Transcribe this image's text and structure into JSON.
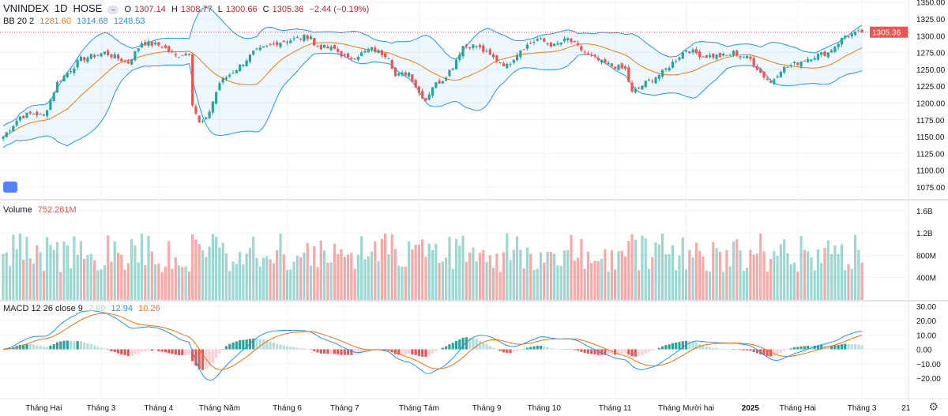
{
  "header": {
    "symbol": "VNINDEX",
    "interval": "1D",
    "exchange": "HOSE",
    "collapse_icon": "minus-icon",
    "open_label": "O",
    "open": "1307.14",
    "high_label": "H",
    "high": "1308.77",
    "low_label": "L",
    "low": "1300.66",
    "close_label": "C",
    "close": "1305.36",
    "change": "−2.44 (−0.19%)"
  },
  "bb": {
    "label": "BB 20 2",
    "basis": "1281.60",
    "upper": "1314.68",
    "lower": "1248.53"
  },
  "volume": {
    "label": "Volume",
    "value": "752.261M"
  },
  "macd": {
    "label": "MACD 12 26 close 9",
    "hist": "2.69",
    "macd": "12.94",
    "signal": "10.26"
  },
  "colors": {
    "up": "#26a69a",
    "down": "#ef5350",
    "bb_basis": "#f57c00",
    "bb_band": "#2196f3",
    "macd": "#2196f3",
    "signal": "#ff6d00"
  },
  "chart_data": {
    "type": "candlestick",
    "price_axis": {
      "ticks": [
        "1350.00",
        "1325.00",
        "1300.00",
        "1275.00",
        "1250.00",
        "1225.00",
        "1200.00",
        "1175.00",
        "1150.00",
        "1125.00",
        "1100.00",
        "1075.00"
      ],
      "last_price": "1305.36"
    },
    "volume_axis": {
      "ticks": [
        "1.6B",
        "1.2B",
        "800M",
        "400M"
      ]
    },
    "macd_axis": {
      "ticks": [
        "30.00",
        "20.00",
        "10.00",
        "0.00",
        "−10.00",
        "−20.00"
      ]
    },
    "time_axis": [
      {
        "label": "Tháng Hai",
        "day": 12
      },
      {
        "label": "Tháng 3",
        "day": 29
      },
      {
        "label": "Tháng 4",
        "day": 46
      },
      {
        "label": "Tháng Năm",
        "day": 64
      },
      {
        "label": "Tháng 6",
        "day": 84
      },
      {
        "label": "Tháng 7",
        "day": 101
      },
      {
        "label": "Tháng Tám",
        "day": 123
      },
      {
        "label": "Tháng 9",
        "day": 143
      },
      {
        "label": "Tháng 10",
        "day": 160
      },
      {
        "label": "Tháng 11",
        "day": 181
      },
      {
        "label": "Tháng Mười hai",
        "day": 202
      },
      {
        "label": "2025",
        "day": 221
      },
      {
        "label": "Tháng Hai",
        "day": 235
      },
      {
        "label": "Tháng 3",
        "day": 254
      },
      {
        "label": "21",
        "day": 267
      }
    ],
    "close_keypoints": [
      [
        0,
        1150
      ],
      [
        5,
        1180
      ],
      [
        9,
        1185
      ],
      [
        12,
        1180
      ],
      [
        16,
        1230
      ],
      [
        23,
        1265
      ],
      [
        30,
        1275
      ],
      [
        37,
        1260
      ],
      [
        41,
        1290
      ],
      [
        47,
        1285
      ],
      [
        51,
        1270
      ],
      [
        55,
        1275
      ],
      [
        56,
        1200
      ],
      [
        58,
        1170
      ],
      [
        60,
        1175
      ],
      [
        64,
        1230
      ],
      [
        70,
        1255
      ],
      [
        74,
        1275
      ],
      [
        81,
        1290
      ],
      [
        91,
        1300
      ],
      [
        92,
        1285
      ],
      [
        98,
        1280
      ],
      [
        102,
        1265
      ],
      [
        109,
        1280
      ],
      [
        114,
        1270
      ],
      [
        116,
        1240
      ],
      [
        120,
        1245
      ],
      [
        123,
        1215
      ],
      [
        125,
        1205
      ],
      [
        127,
        1225
      ],
      [
        130,
        1235
      ],
      [
        133,
        1255
      ],
      [
        136,
        1285
      ],
      [
        140,
        1285
      ],
      [
        144,
        1270
      ],
      [
        149,
        1255
      ],
      [
        153,
        1280
      ],
      [
        158,
        1295
      ],
      [
        163,
        1285
      ],
      [
        167,
        1295
      ],
      [
        172,
        1275
      ],
      [
        177,
        1260
      ],
      [
        184,
        1250
      ],
      [
        186,
        1215
      ],
      [
        190,
        1230
      ],
      [
        195,
        1245
      ],
      [
        202,
        1280
      ],
      [
        207,
        1270
      ],
      [
        214,
        1270
      ],
      [
        216,
        1275
      ],
      [
        221,
        1265
      ],
      [
        224,
        1245
      ],
      [
        227,
        1230
      ],
      [
        230,
        1250
      ],
      [
        235,
        1260
      ],
      [
        240,
        1270
      ],
      [
        244,
        1275
      ],
      [
        249,
        1300
      ],
      [
        254,
        1305.36
      ]
    ]
  }
}
